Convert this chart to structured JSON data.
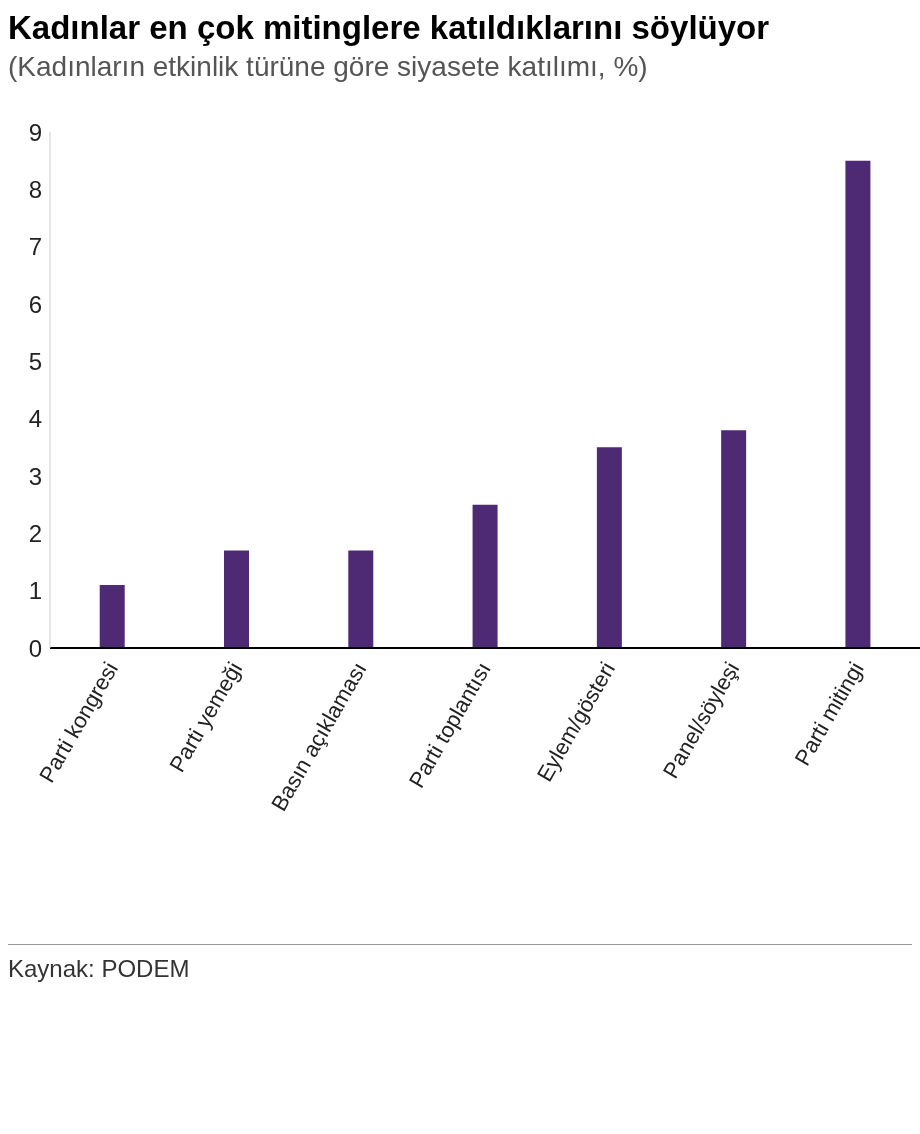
{
  "chart_data": {
    "type": "bar",
    "title": "Kadınlar en çok mitinglere katıldıklarını söylüyor",
    "subtitle": "(Kadınların etkinlik türüne göre siyasete katılımı, %)",
    "categories": [
      "Parti kongresi",
      "Parti yemeği",
      "Basın açıklaması",
      "Parti toplantısı",
      "Eylem/gösteri",
      "Panel/söyleşi",
      "Parti mitingi"
    ],
    "values": [
      1.1,
      1.7,
      1.7,
      2.5,
      3.5,
      3.8,
      8.5
    ],
    "color": "#4e2a75",
    "ylim": [
      0,
      9
    ],
    "yticks": [
      0,
      1,
      2,
      3,
      4,
      5,
      6,
      7,
      8,
      9
    ],
    "grid": false,
    "annotations": [
      "Kaynak: PODEM"
    ]
  }
}
